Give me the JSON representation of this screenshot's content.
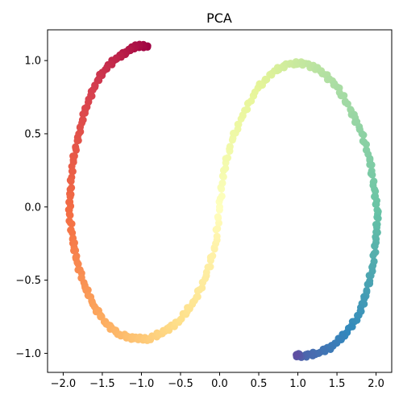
{
  "chart_data": {
    "type": "scatter",
    "title": "PCA",
    "xlabel": "",
    "ylabel": "",
    "xlim": [
      -2.2,
      2.2
    ],
    "ylim": [
      -1.13,
      1.21
    ],
    "xticks": [
      -2.0,
      -1.5,
      -1.0,
      -0.5,
      0.0,
      0.5,
      1.0,
      1.5,
      2.0
    ],
    "xtick_labels": [
      "−2.0",
      "−1.5",
      "−1.0",
      "−0.5",
      "0.0",
      "0.5",
      "1.0",
      "1.5",
      "2.0"
    ],
    "yticks": [
      -1.0,
      -0.5,
      0.0,
      0.5,
      1.0
    ],
    "ytick_labels": [
      "−1.0",
      "−0.5",
      "0.0",
      "0.5",
      "1.0"
    ],
    "grid": false,
    "legend": "none",
    "colormap": "Spectral",
    "series": [
      {
        "points": [
          {
            "x": -0.92,
            "y": 1.1,
            "t": 0.0
          },
          {
            "x": -1.05,
            "y": 1.1,
            "t": 0.02
          },
          {
            "x": -1.2,
            "y": 1.06,
            "t": 0.04
          },
          {
            "x": -1.35,
            "y": 1.0,
            "t": 0.06
          },
          {
            "x": -1.5,
            "y": 0.92,
            "t": 0.08
          },
          {
            "x": -1.62,
            "y": 0.8,
            "t": 0.1
          },
          {
            "x": -1.72,
            "y": 0.66,
            "t": 0.12
          },
          {
            "x": -1.8,
            "y": 0.5,
            "t": 0.14
          },
          {
            "x": -1.87,
            "y": 0.32,
            "t": 0.16
          },
          {
            "x": -1.91,
            "y": 0.12,
            "t": 0.18
          },
          {
            "x": -1.92,
            "y": -0.05,
            "t": 0.2
          },
          {
            "x": -1.88,
            "y": -0.22,
            "t": 0.22
          },
          {
            "x": -1.82,
            "y": -0.38,
            "t": 0.24
          },
          {
            "x": -1.72,
            "y": -0.55,
            "t": 0.26
          },
          {
            "x": -1.6,
            "y": -0.68,
            "t": 0.28
          },
          {
            "x": -1.45,
            "y": -0.8,
            "t": 0.3
          },
          {
            "x": -1.28,
            "y": -0.87,
            "t": 0.32
          },
          {
            "x": -1.1,
            "y": -0.9,
            "t": 0.34
          },
          {
            "x": -0.9,
            "y": -0.9,
            "t": 0.36
          },
          {
            "x": -0.7,
            "y": -0.85,
            "t": 0.38
          },
          {
            "x": -0.5,
            "y": -0.77,
            "t": 0.4
          },
          {
            "x": -0.32,
            "y": -0.64,
            "t": 0.42
          },
          {
            "x": -0.17,
            "y": -0.47,
            "t": 0.44
          },
          {
            "x": -0.05,
            "y": -0.25,
            "t": 0.46
          },
          {
            "x": 0.0,
            "y": 0.0,
            "t": 0.5
          },
          {
            "x": 0.05,
            "y": 0.25,
            "t": 0.54
          },
          {
            "x": 0.17,
            "y": 0.47,
            "t": 0.56
          },
          {
            "x": 0.32,
            "y": 0.66,
            "t": 0.58
          },
          {
            "x": 0.5,
            "y": 0.82,
            "t": 0.6
          },
          {
            "x": 0.7,
            "y": 0.93,
            "t": 0.62
          },
          {
            "x": 0.9,
            "y": 0.98,
            "t": 0.64
          },
          {
            "x": 1.1,
            "y": 0.98,
            "t": 0.66
          },
          {
            "x": 1.3,
            "y": 0.93,
            "t": 0.68
          },
          {
            "x": 1.5,
            "y": 0.82,
            "t": 0.7
          },
          {
            "x": 1.68,
            "y": 0.66,
            "t": 0.72
          },
          {
            "x": 1.82,
            "y": 0.5,
            "t": 0.74
          },
          {
            "x": 1.92,
            "y": 0.32,
            "t": 0.76
          },
          {
            "x": 1.98,
            "y": 0.12,
            "t": 0.78
          },
          {
            "x": 2.02,
            "y": -0.05,
            "t": 0.8
          },
          {
            "x": 2.0,
            "y": -0.22,
            "t": 0.82
          },
          {
            "x": 1.96,
            "y": -0.4,
            "t": 0.84
          },
          {
            "x": 1.88,
            "y": -0.58,
            "t": 0.86
          },
          {
            "x": 1.78,
            "y": -0.74,
            "t": 0.88
          },
          {
            "x": 1.62,
            "y": -0.86,
            "t": 0.9
          },
          {
            "x": 1.45,
            "y": -0.95,
            "t": 0.92
          },
          {
            "x": 1.25,
            "y": -1.0,
            "t": 0.94
          },
          {
            "x": 1.05,
            "y": -1.02,
            "t": 0.96
          },
          {
            "x": 0.98,
            "y": -1.01,
            "t": 1.0
          }
        ]
      }
    ]
  }
}
